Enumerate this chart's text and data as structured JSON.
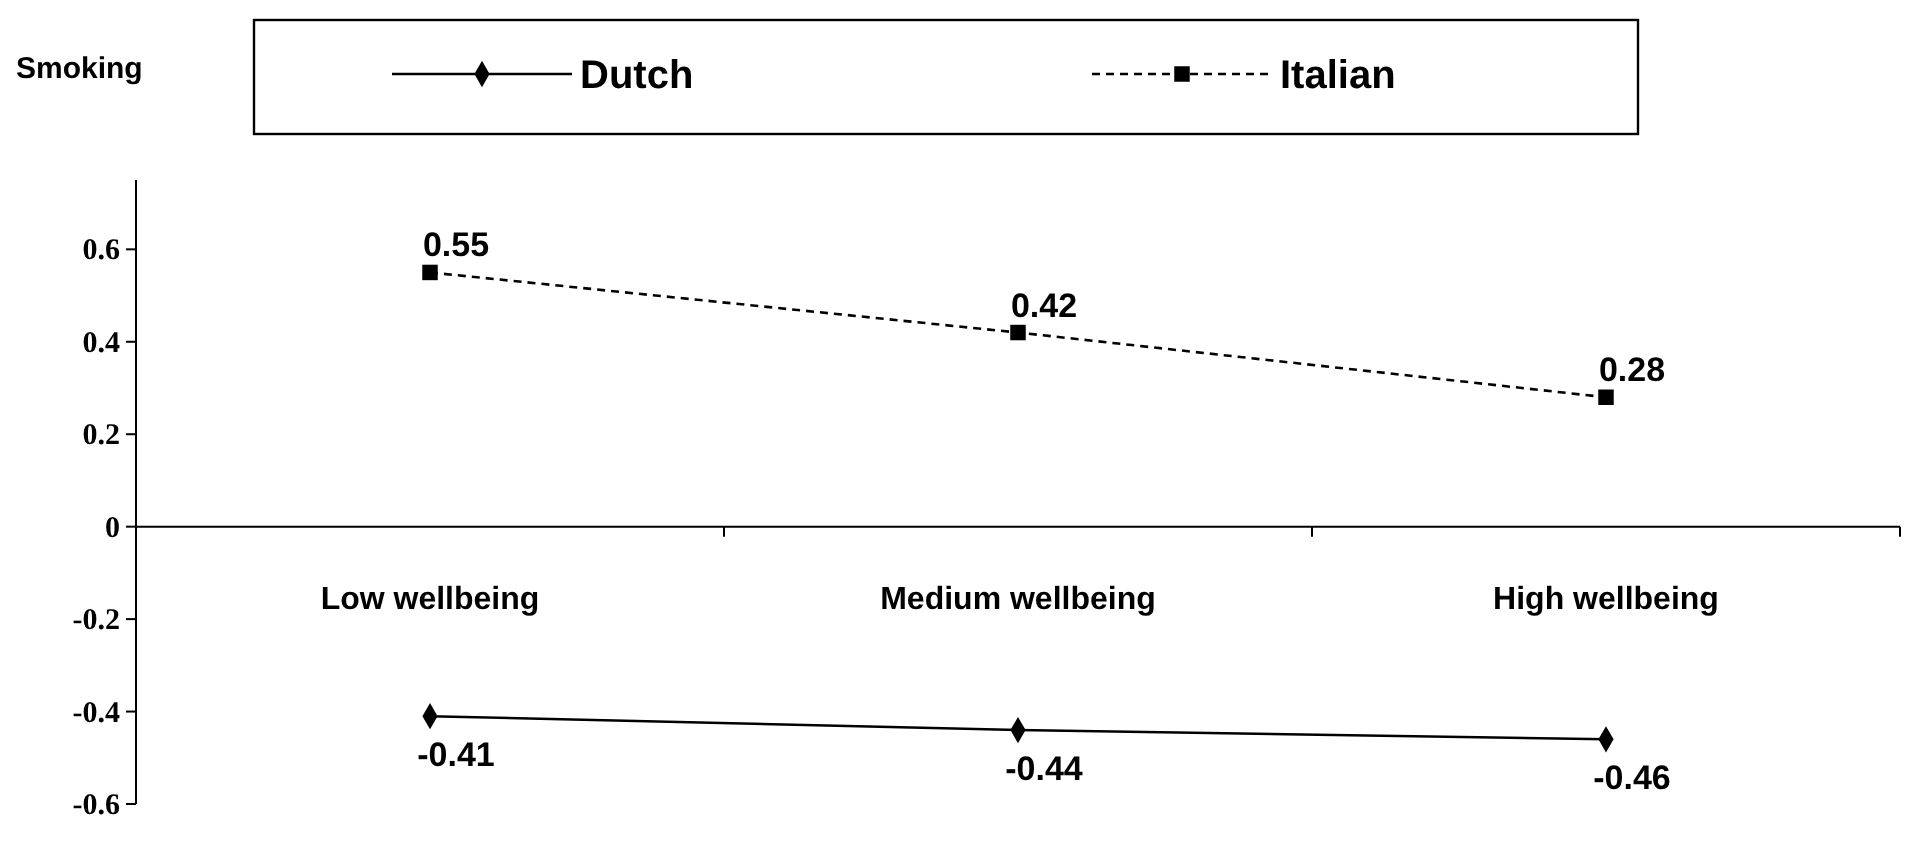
{
  "chart_data": {
    "type": "line",
    "title": "Smoking",
    "categories": [
      "Low wellbeing",
      "Medium wellbeing",
      "High wellbeing"
    ],
    "series": [
      {
        "name": "Dutch",
        "color": "#000000",
        "values": [
          -0.41,
          -0.44,
          -0.46
        ],
        "marker": "diamond",
        "line_style": "solid"
      },
      {
        "name": "Italian",
        "color": "#000000",
        "values": [
          0.55,
          0.42,
          0.28
        ],
        "marker": "square",
        "line_style": "dashed"
      }
    ],
    "ylim": [
      -0.6,
      0.75
    ],
    "yticks": [
      -0.6,
      -0.4,
      -0.2,
      0,
      0.2,
      0.4,
      0.6
    ],
    "data_labels": true,
    "legend": "top",
    "grid": false
  }
}
